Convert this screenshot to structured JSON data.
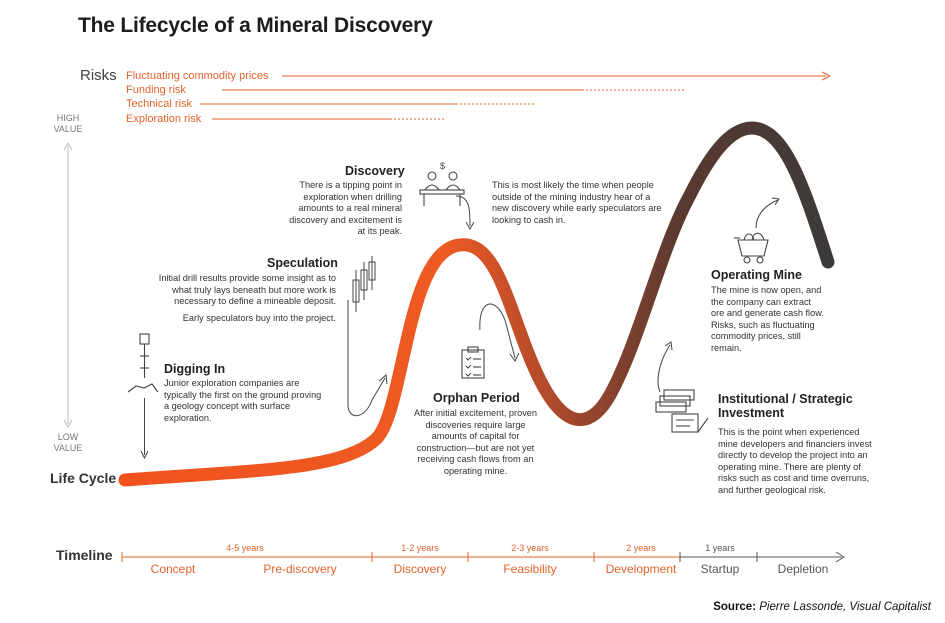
{
  "title": "The Lifecycle of a Mineral Discovery",
  "risks": {
    "label": "Risks",
    "items": [
      "Fluctuating commodity prices",
      "Funding risk",
      "Technical risk",
      "Exploration risk"
    ]
  },
  "value_axis": {
    "high": "HIGH VALUE",
    "low": "LOW VALUE"
  },
  "lifecycle_label": "Life Cycle",
  "stages": {
    "discovery": {
      "title": "Discovery",
      "text": "There is a tipping point in exploration when drilling amounts to a real mineral discovery and excitement is at its peak."
    },
    "discovery_note": {
      "text": "This is most likely the time when people outside of the mining industry hear of a new discovery while early speculators are looking to cash in."
    },
    "speculation": {
      "title": "Speculation",
      "text": "Initial drill results provide some insight as to what truly lays beneath but more work is necessary to define a mineable deposit.",
      "text2": "Early speculators buy into the project."
    },
    "digging_in": {
      "title": "Digging In",
      "text": "Junior exploration companies are typically the first on the ground proving a geology concept with surface exploration."
    },
    "orphan": {
      "title": "Orphan Period",
      "text": "After initial excitement, proven discoveries require large amounts of capital for construction—but are not yet receiving cash flows from an operating mine."
    },
    "operating": {
      "title": "Operating Mine",
      "text": "The mine is now open, and the company can extract ore and generate cash flow. Risks, such as fluctuating commodity prices, still remain."
    },
    "institutional": {
      "title": "Institutional / Strategic Investment",
      "text": "This is the point when experienced mine developers and financiers invest directly to develop the project into an operating mine. There are plenty of risks such as cost and time overruns, and further geological risk."
    }
  },
  "timeline": {
    "label": "Timeline",
    "durations": [
      "4-5 years",
      "1-2 years",
      "2-3 years",
      "2 years",
      "1 years"
    ],
    "phases": [
      "Concept",
      "Pre-discovery",
      "Discovery",
      "Feasibility",
      "Development",
      "Startup",
      "Depletion"
    ]
  },
  "source": {
    "label": "Source:",
    "text": "Pierre Lassonde, Visual Capitalist"
  },
  "colors": {
    "accent": "#e2632b",
    "curve_start": "#f0521e",
    "curve_end": "#3a3a3a",
    "text": "#333333"
  },
  "icons": [
    "drill-icon",
    "candlestick-icon",
    "trader-desk-icon",
    "checklist-icon",
    "money-stack-icon",
    "mine-cart-icon"
  ]
}
